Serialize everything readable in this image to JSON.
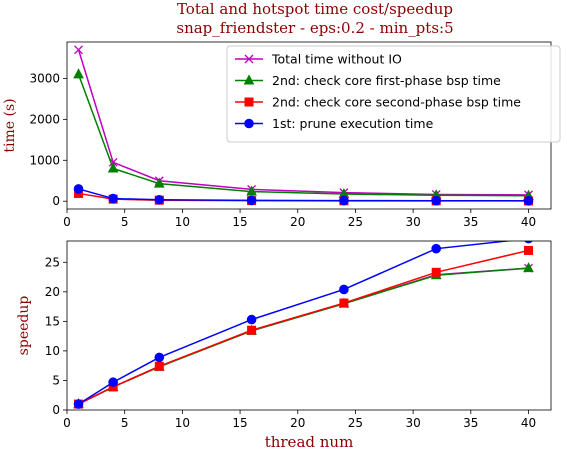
{
  "chart_data": [
    {
      "type": "line",
      "title": "Total and hotspot time cost/speedup\nsnap_friendster - eps:0.2 - min_pts:5",
      "title_color": "#8b0000",
      "xlabel": "",
      "ylabel": "time (s)",
      "xlim": [
        0,
        41.95
      ],
      "ylim": [
        -190,
        3890
      ],
      "xticks": [
        "0",
        "5",
        "10",
        "15",
        "20",
        "25",
        "30",
        "35",
        "40"
      ],
      "yticks": [
        "0",
        "1000",
        "2000",
        "3000"
      ],
      "legend_position": "upper right",
      "x": [
        1,
        4,
        8,
        16,
        24,
        32,
        40
      ],
      "series": [
        {
          "name": "Total time without IO",
          "color": "#bf00bf",
          "marker": "x",
          "values": [
            3700,
            950,
            500,
            290,
            210,
            165,
            155
          ]
        },
        {
          "name": "2nd: check core first-phase bsp time",
          "color": "#008000",
          "marker": "triangle",
          "values": [
            3100,
            800,
            430,
            235,
            175,
            145,
            135
          ]
        },
        {
          "name": "2nd: check core second-phase bsp time",
          "color": "#ff0000",
          "marker": "square",
          "values": [
            190,
            50,
            25,
            15,
            10,
            8,
            7
          ]
        },
        {
          "name": "1st: prune execution time",
          "color": "#0000ff",
          "marker": "circle",
          "values": [
            300,
            65,
            35,
            20,
            15,
            12,
            10
          ]
        }
      ]
    },
    {
      "type": "line",
      "title": "",
      "xlabel": "thread num",
      "ylabel": "speedup",
      "xlim": [
        0,
        41.95
      ],
      "ylim": [
        0,
        28.6
      ],
      "xticks": [
        "0",
        "5",
        "10",
        "15",
        "20",
        "25",
        "30",
        "35",
        "40"
      ],
      "yticks": [
        "0",
        "5",
        "10",
        "15",
        "20",
        "25"
      ],
      "x": [
        1,
        4,
        8,
        16,
        24,
        32,
        40
      ],
      "series": [
        {
          "color": "#bf00bf",
          "marker": "x",
          "values": [
            1,
            3.9,
            7.4,
            13.4,
            18.0,
            22.9,
            24.0
          ]
        },
        {
          "color": "#008000",
          "marker": "triangle",
          "values": [
            1,
            3.9,
            7.3,
            13.4,
            18.0,
            22.8,
            24.0
          ]
        },
        {
          "color": "#ff0000",
          "marker": "square",
          "values": [
            1,
            3.9,
            7.4,
            13.5,
            18.1,
            23.3,
            27.0
          ]
        },
        {
          "color": "#0000ff",
          "marker": "circle",
          "values": [
            1,
            4.7,
            8.9,
            15.3,
            20.4,
            27.3,
            29.0
          ]
        }
      ]
    }
  ]
}
